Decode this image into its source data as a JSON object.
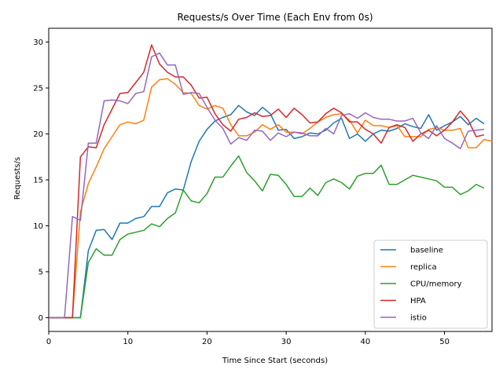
{
  "chart_data": {
    "type": "line",
    "title": "Requests/s Over Time (Each Env from 0s)",
    "xlabel": "Time Since Start (seconds)",
    "ylabel": "Requests/s",
    "xlim": [
      0,
      56
    ],
    "ylim": [
      -1.5,
      31.5
    ],
    "xticks": [
      0,
      10,
      20,
      30,
      40,
      50
    ],
    "yticks": [
      0,
      5,
      10,
      15,
      20,
      25,
      30
    ],
    "grid": false,
    "legend_position": "lower-right",
    "series": [
      {
        "name": "baseline",
        "color": "#1f77b4",
        "x": [
          0,
          1,
          2,
          3,
          4,
          5,
          6,
          7,
          8,
          9,
          10,
          11,
          12,
          13,
          14,
          15,
          16,
          17,
          18,
          19,
          20,
          21,
          22,
          23,
          24,
          25,
          26,
          27,
          28,
          29,
          30,
          31,
          32,
          33,
          34,
          35,
          36,
          37,
          38,
          39,
          40,
          41,
          42,
          43,
          44,
          45,
          46,
          47,
          48,
          49,
          50,
          51,
          52,
          53,
          54,
          55
        ],
        "y": [
          0,
          0,
          0,
          0,
          0,
          7.3,
          9.5,
          9.6,
          8.5,
          10.3,
          10.3,
          10.8,
          11,
          12.1,
          12.1,
          13.6,
          14,
          13.9,
          17,
          19.2,
          20.5,
          21.4,
          21.8,
          22.1,
          23.1,
          22.4,
          22,
          22.9,
          22.2,
          20.4,
          20.5,
          19.5,
          19.7,
          20.1,
          20,
          20.4,
          21.2,
          21.7,
          19.5,
          20,
          19.2,
          20,
          20.4,
          20.3,
          20.6,
          21.1,
          20.8,
          20.6,
          22.1,
          20.4,
          20.9,
          21.3,
          21.9,
          21,
          21.7,
          21.1
        ]
      },
      {
        "name": "replica",
        "color": "#ff7f0e",
        "x": [
          0,
          1,
          2,
          3,
          4,
          5,
          6,
          7,
          8,
          9,
          10,
          11,
          12,
          13,
          14,
          15,
          16,
          17,
          18,
          19,
          20,
          21,
          22,
          23,
          24,
          25,
          26,
          27,
          28,
          29,
          30,
          31,
          32,
          33,
          34,
          35,
          36,
          37,
          38,
          39,
          40,
          41,
          42,
          43,
          44,
          45,
          46,
          47,
          48,
          49,
          50,
          51,
          52,
          53,
          54,
          55,
          56
        ],
        "y": [
          0,
          0,
          0,
          0,
          11.5,
          14.6,
          16.4,
          18.4,
          19.7,
          21,
          21.3,
          21.1,
          21.5,
          25.1,
          25.9,
          26,
          25.4,
          24.5,
          24.4,
          23.1,
          22.7,
          23.1,
          22.8,
          21,
          19.8,
          19.8,
          20.2,
          21,
          20.5,
          21,
          20.2,
          20.2,
          20,
          20.6,
          21.3,
          21.8,
          22.1,
          22.2,
          21.5,
          20.1,
          21.5,
          20.9,
          20.9,
          20.7,
          20.9,
          19.7,
          19.7,
          19.7,
          20.5,
          20.7,
          20.4,
          20.4,
          20.6,
          18.5,
          18.5,
          19.4,
          19.2
        ]
      },
      {
        "name": "CPU/memory",
        "color": "#2ca02c",
        "x": [
          0,
          1,
          2,
          3,
          4,
          5,
          6,
          7,
          8,
          9,
          10,
          11,
          12,
          13,
          14,
          15,
          16,
          17,
          18,
          19,
          20,
          21,
          22,
          23,
          24,
          25,
          26,
          27,
          28,
          29,
          30,
          31,
          32,
          33,
          34,
          35,
          36,
          37,
          38,
          39,
          40,
          41,
          42,
          43,
          44,
          45,
          46,
          47,
          48,
          49,
          50,
          51,
          52,
          53,
          54,
          55
        ],
        "y": [
          0,
          0,
          0,
          0,
          0,
          6,
          7.5,
          6.8,
          6.8,
          8.5,
          9.1,
          9.3,
          9.5,
          10.2,
          9.9,
          10.8,
          11.4,
          13.9,
          12.7,
          12.5,
          13.5,
          15.3,
          15.3,
          16.5,
          17.6,
          15.8,
          14.9,
          13.8,
          15.6,
          15.5,
          14.5,
          13.2,
          13.2,
          14.1,
          13.3,
          14.7,
          15.1,
          14.7,
          14,
          15.4,
          15.7,
          15.7,
          16.6,
          14.5,
          14.5,
          15,
          15.5,
          15.3,
          15.1,
          14.9,
          14.2,
          14.2,
          13.4,
          13.8,
          14.5,
          14.1
        ]
      },
      {
        "name": "HPA",
        "color": "#d62728",
        "x": [
          0,
          1,
          2,
          3,
          4,
          5,
          6,
          7,
          8,
          9,
          10,
          11,
          12,
          13,
          14,
          15,
          16,
          17,
          18,
          19,
          20,
          21,
          22,
          23,
          24,
          25,
          26,
          27,
          28,
          29,
          30,
          31,
          32,
          33,
          34,
          35,
          36,
          37,
          38,
          39,
          40,
          41,
          42,
          43,
          44,
          45,
          46,
          47,
          48,
          49,
          50,
          51,
          52,
          53,
          54,
          55
        ],
        "y": [
          0,
          0,
          0,
          0,
          17.5,
          18.6,
          18.5,
          21,
          22.7,
          24.4,
          24.5,
          25.6,
          26.7,
          29.7,
          27.6,
          26.7,
          26.2,
          26.2,
          25.3,
          23.9,
          24,
          22.2,
          21,
          20.3,
          21.6,
          21.8,
          22.3,
          21.9,
          22,
          22.7,
          21.8,
          22.8,
          22.1,
          21.2,
          21.3,
          22.2,
          22.8,
          22.3,
          21.3,
          21.3,
          20.5,
          20,
          19,
          20.7,
          21,
          20.7,
          19.2,
          20,
          20.4,
          19.8,
          20.4,
          21.3,
          22.5,
          21.5,
          19.7,
          19.9
        ]
      },
      {
        "name": "istio",
        "color": "#9467bd",
        "x": [
          0,
          1,
          2,
          3,
          4,
          5,
          6,
          7,
          8,
          9,
          10,
          11,
          12,
          13,
          14,
          15,
          16,
          17,
          18,
          19,
          20,
          21,
          22,
          23,
          24,
          25,
          26,
          27,
          28,
          29,
          30,
          31,
          32,
          33,
          34,
          35,
          36,
          37,
          38,
          39,
          40,
          41,
          42,
          43,
          44,
          45,
          46,
          47,
          48,
          49,
          50,
          51,
          52,
          53,
          54,
          55
        ],
        "y": [
          0,
          0,
          0,
          11,
          10.6,
          19,
          19,
          23.6,
          23.7,
          23.6,
          23.3,
          24.4,
          24.6,
          28.4,
          28.8,
          27.5,
          27.5,
          24.3,
          24.5,
          24.4,
          22.9,
          21.5,
          20.6,
          18.9,
          19.6,
          19.3,
          20.4,
          20.3,
          19.3,
          20.1,
          19.7,
          20.2,
          20.1,
          19.8,
          19.8,
          20.6,
          20,
          22,
          22.2,
          21.7,
          22.3,
          21.8,
          21.6,
          21.6,
          21.4,
          21.4,
          21.7,
          20.1,
          19.5,
          20.9,
          19.5,
          19,
          18.4,
          20.3,
          20.4,
          20.5
        ]
      }
    ]
  }
}
